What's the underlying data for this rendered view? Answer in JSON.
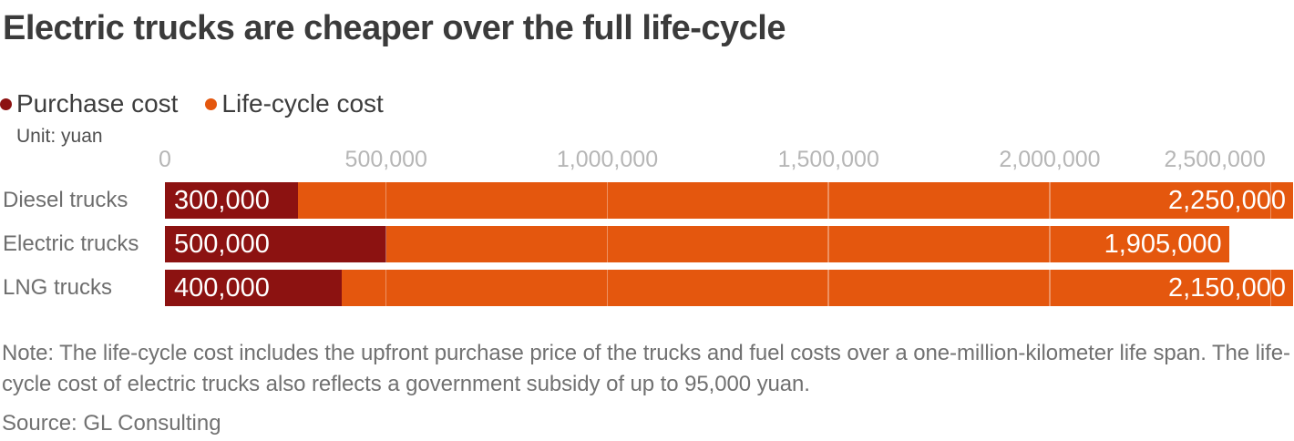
{
  "chart_data": {
    "type": "bar",
    "orientation": "horizontal",
    "stacked": true,
    "title": "Electric trucks are cheaper over the full life-cycle",
    "unit_label": "Unit: yuan",
    "categories": [
      "Diesel trucks",
      "Electric trucks",
      "LNG trucks"
    ],
    "series": [
      {
        "name": "Purchase cost",
        "color": "#8c1211",
        "values": [
          300000,
          500000,
          400000
        ]
      },
      {
        "name": "Life-cycle cost",
        "color": "#e4570e",
        "values": [
          2250000,
          1905000,
          2150000
        ]
      }
    ],
    "x_ticks": [
      0,
      500000,
      1000000,
      1500000,
      2000000,
      2500000
    ],
    "xlim": [
      0,
      2550000
    ],
    "gridline_color": "rgba(255,255,255,0.35)",
    "legend_position": "top-left",
    "value_labels": "inside"
  },
  "note_lines": [
    "Note: The life-cycle cost includes the upfront purchase price of the trucks and fuel costs over a one-million-kilometer life span. The life-",
    "cycle cost of electric trucks also reflects a government subsidy of up to 95,000 yuan."
  ],
  "source": "Source: GL Consulting"
}
